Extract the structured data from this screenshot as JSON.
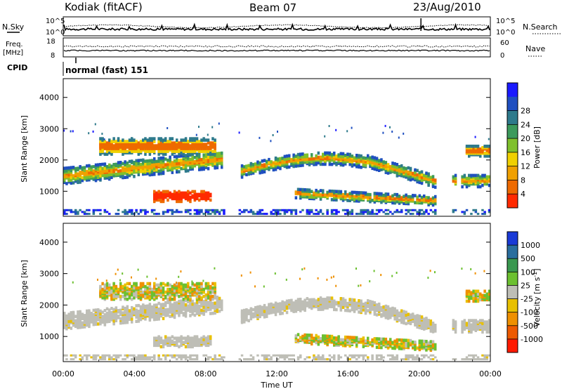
{
  "header": {
    "station": "Kodiak (fitACF)",
    "beam": "Beam 07",
    "date": "23/Aug/2010"
  },
  "strip_panels": {
    "nsky_label": "N.Sky",
    "nsearch_label": "N.Search",
    "noise_ticks": [
      "10^5",
      "10^0"
    ],
    "freq_label": "Freq.",
    "freq_unit": "[MHz]",
    "freq_ticks": [
      "18",
      "8"
    ],
    "nave_label": "Nave",
    "nave_ticks": [
      "60",
      "0"
    ],
    "cpid_label": "CPID",
    "cpid_value": "normal (fast) 151"
  },
  "chart_data": [
    {
      "type": "heatmap",
      "name": "power",
      "ylabel": "Slant Range [km]",
      "ylim": [
        200,
        4600
      ],
      "y_ticks": [
        1000,
        2000,
        3000,
        4000
      ],
      "colorbar": {
        "label": "Power [dB]",
        "ticks": [
          "4",
          "8",
          "12",
          "16",
          "20",
          "24",
          "28"
        ],
        "colors": [
          "#1a1aff",
          "#1f4fc0",
          "#2e7a8c",
          "#3c9a5c",
          "#7fc02c",
          "#f0d000",
          "#f0a000",
          "#ee6a00",
          "#ff2a00"
        ]
      }
    },
    {
      "type": "heatmap",
      "name": "velocity",
      "ylabel": "Slant Range [km]",
      "xlabel": "Time UT",
      "ylim": [
        200,
        4600
      ],
      "y_ticks": [
        1000,
        2000,
        3000,
        4000
      ],
      "x_ticks": [
        "00:00",
        "04:00",
        "08:00",
        "12:00",
        "16:00",
        "20:00",
        "00:00"
      ],
      "colorbar": {
        "label": "Velocity [m s^-1]",
        "ticks": [
          "1000",
          "500",
          "100",
          "25",
          "-25",
          "-100",
          "-500",
          "-1000"
        ],
        "colors": [
          "#1a3ad6",
          "#2a6e9e",
          "#3a9850",
          "#6cc030",
          "#bebeb6",
          "#e8c000",
          "#ef9000",
          "#ee5a00",
          "#ff1a00"
        ]
      }
    }
  ]
}
